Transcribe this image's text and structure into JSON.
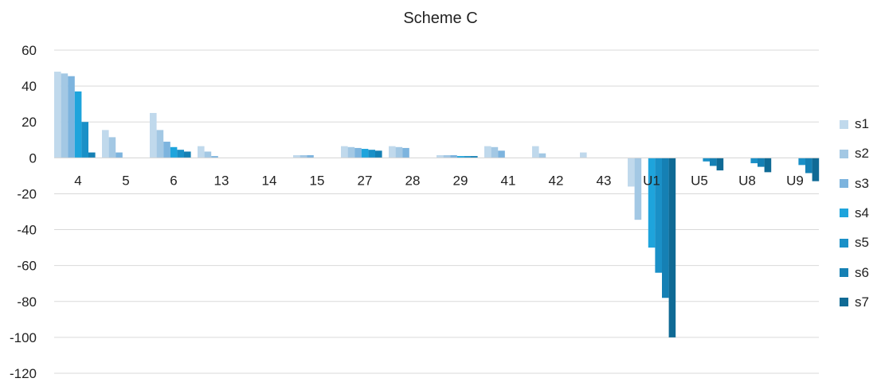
{
  "chart_data": {
    "type": "bar",
    "title": "Scheme C",
    "xlabel": "",
    "ylabel": "",
    "ylim": [
      -120,
      60
    ],
    "yticks": [
      60,
      40,
      20,
      0,
      -20,
      -40,
      -60,
      -80,
      -100,
      -120
    ],
    "grid": true,
    "legend_position": "right",
    "categories": [
      "4",
      "5",
      "6",
      "13",
      "14",
      "15",
      "27",
      "28",
      "29",
      "41",
      "42",
      "43",
      "U1",
      "U5",
      "U8",
      "U9"
    ],
    "series": [
      {
        "name": "s1",
        "color": "#c0d9ec",
        "values": [
          48,
          15.5,
          25,
          6.5,
          0,
          1.5,
          6.5,
          6.5,
          1.5,
          6.5,
          6.5,
          3,
          -16,
          0,
          0,
          0
        ]
      },
      {
        "name": "s2",
        "color": "#a3c8e4",
        "values": [
          47,
          11.5,
          15.5,
          3.5,
          0,
          1.5,
          6,
          6,
          1.5,
          6,
          2.5,
          0,
          -34.5,
          0,
          0,
          0
        ]
      },
      {
        "name": "s3",
        "color": "#7db4de",
        "values": [
          45.5,
          3,
          9,
          1,
          0,
          1.5,
          5.5,
          5.5,
          1.5,
          4,
          0,
          0,
          0,
          0,
          0,
          0
        ]
      },
      {
        "name": "s4",
        "color": "#1ea4dc",
        "values": [
          37,
          0,
          6,
          0,
          0,
          0,
          5,
          0,
          1,
          0,
          0,
          0,
          -50,
          0,
          0,
          0
        ]
      },
      {
        "name": "s5",
        "color": "#1a90c7",
        "values": [
          20,
          0,
          4.5,
          0,
          0,
          0,
          4.5,
          0,
          1,
          0,
          0,
          0,
          -64,
          -2,
          -3,
          -4
        ]
      },
      {
        "name": "s6",
        "color": "#1580b4",
        "values": [
          3,
          0,
          3.5,
          0,
          0,
          0,
          4,
          0,
          1,
          0,
          0,
          0,
          -78,
          -4.5,
          -5,
          -8.5
        ]
      },
      {
        "name": "s7",
        "color": "#0f6a95",
        "values": [
          0,
          0,
          0,
          0,
          0,
          0,
          0,
          0,
          0,
          0,
          0,
          0,
          -100,
          -7,
          -8,
          -13
        ]
      }
    ]
  }
}
